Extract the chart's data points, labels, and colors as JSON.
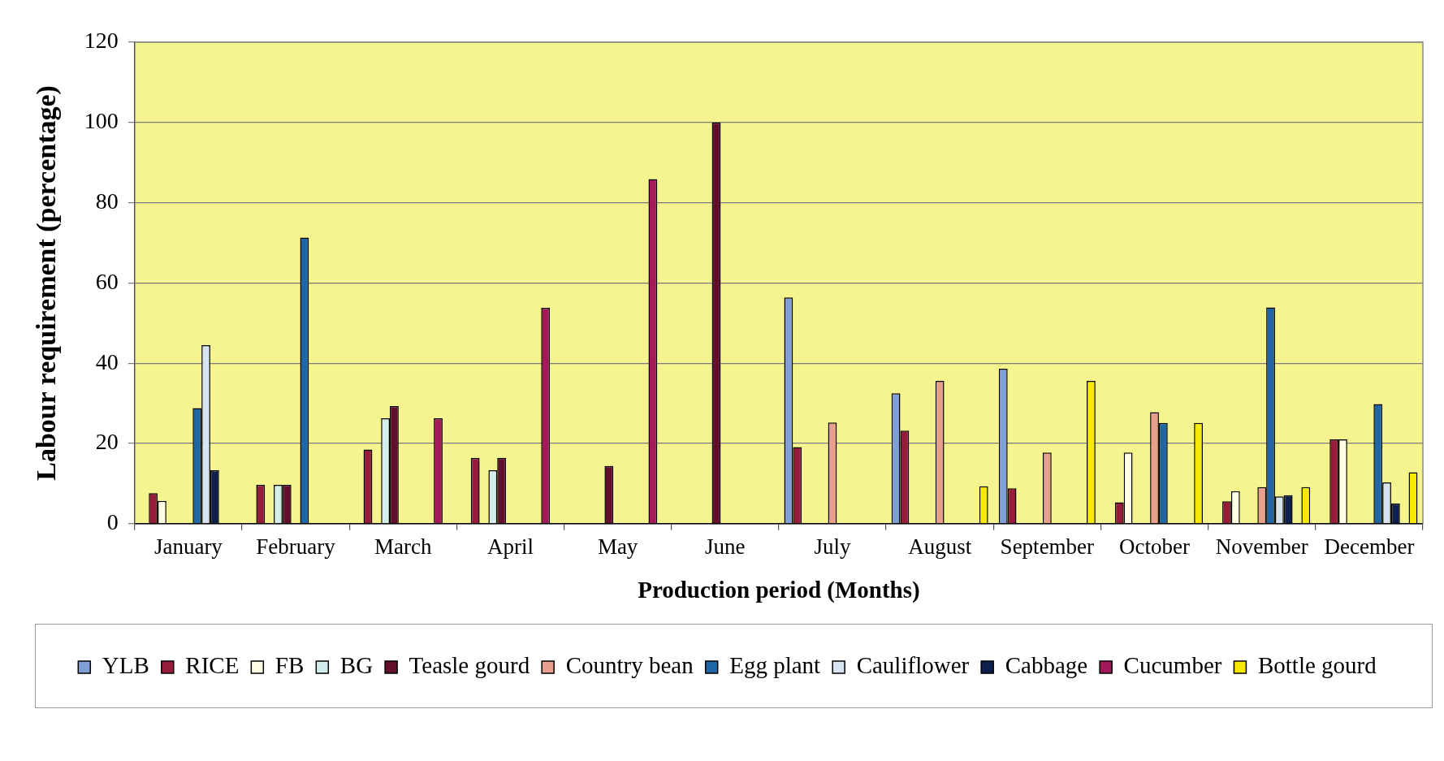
{
  "chart_data": {
    "type": "bar",
    "xlabel": "Production period (Months)",
    "ylabel": "Labour requirement (percentage)",
    "categories": [
      "January",
      "February",
      "March",
      "April",
      "May",
      "June",
      "July",
      "August",
      "September",
      "October",
      "November",
      "December"
    ],
    "series": [
      {
        "name": "YLB",
        "color": "#7f9fd6",
        "values": [
          null,
          null,
          null,
          null,
          null,
          null,
          56.4,
          32.5,
          38.6,
          null,
          null,
          null
        ]
      },
      {
        "name": "RICE",
        "color": "#971c3c",
        "values": [
          7.6,
          9.7,
          18.5,
          16.4,
          null,
          null,
          19.1,
          23.2,
          8.8,
          5.3,
          5.6,
          21.0
        ]
      },
      {
        "name": "FB",
        "color": "#fffde3",
        "values": [
          5.7,
          null,
          null,
          null,
          null,
          null,
          null,
          null,
          null,
          17.7,
          8.1,
          21.0
        ]
      },
      {
        "name": "BG",
        "color": "#d3eded",
        "values": [
          null,
          9.7,
          26.3,
          13.3,
          null,
          null,
          null,
          null,
          null,
          null,
          null,
          null
        ]
      },
      {
        "name": "Teasle gourd",
        "color": "#640e2e",
        "values": [
          null,
          9.7,
          29.3,
          16.4,
          14.4,
          100,
          null,
          null,
          null,
          null,
          null,
          null
        ]
      },
      {
        "name": "Country bean",
        "color": "#e8a08c",
        "values": [
          null,
          null,
          null,
          null,
          null,
          null,
          25.2,
          35.6,
          17.7,
          27.8,
          9.1,
          null
        ]
      },
      {
        "name": "Egg plant",
        "color": "#1e66a6",
        "values": [
          28.8,
          71.3,
          null,
          null,
          null,
          null,
          null,
          null,
          null,
          25.1,
          53.9,
          29.8
        ]
      },
      {
        "name": "Cauliflower",
        "color": "#d6e4f2",
        "values": [
          44.5,
          null,
          null,
          null,
          null,
          null,
          null,
          null,
          null,
          null,
          6.8,
          10.3
        ]
      },
      {
        "name": "Cabbage",
        "color": "#0d1f4d",
        "values": [
          13.3,
          null,
          null,
          null,
          null,
          null,
          null,
          null,
          null,
          null,
          7.1,
          5.0
        ]
      },
      {
        "name": "Cucumber",
        "color": "#a4185c",
        "values": [
          null,
          null,
          26.3,
          53.8,
          85.9,
          null,
          null,
          null,
          null,
          null,
          null,
          null
        ]
      },
      {
        "name": "Bottle gourd",
        "color": "#f8e805",
        "values": [
          null,
          null,
          null,
          null,
          null,
          null,
          null,
          9.3,
          35.6,
          25.1,
          9.1,
          12.8
        ]
      }
    ],
    "ylim": [
      0,
      120
    ],
    "yticks": [
      0,
      20,
      40,
      60,
      80,
      100,
      120
    ],
    "grid": "y",
    "legend": "bottom"
  }
}
